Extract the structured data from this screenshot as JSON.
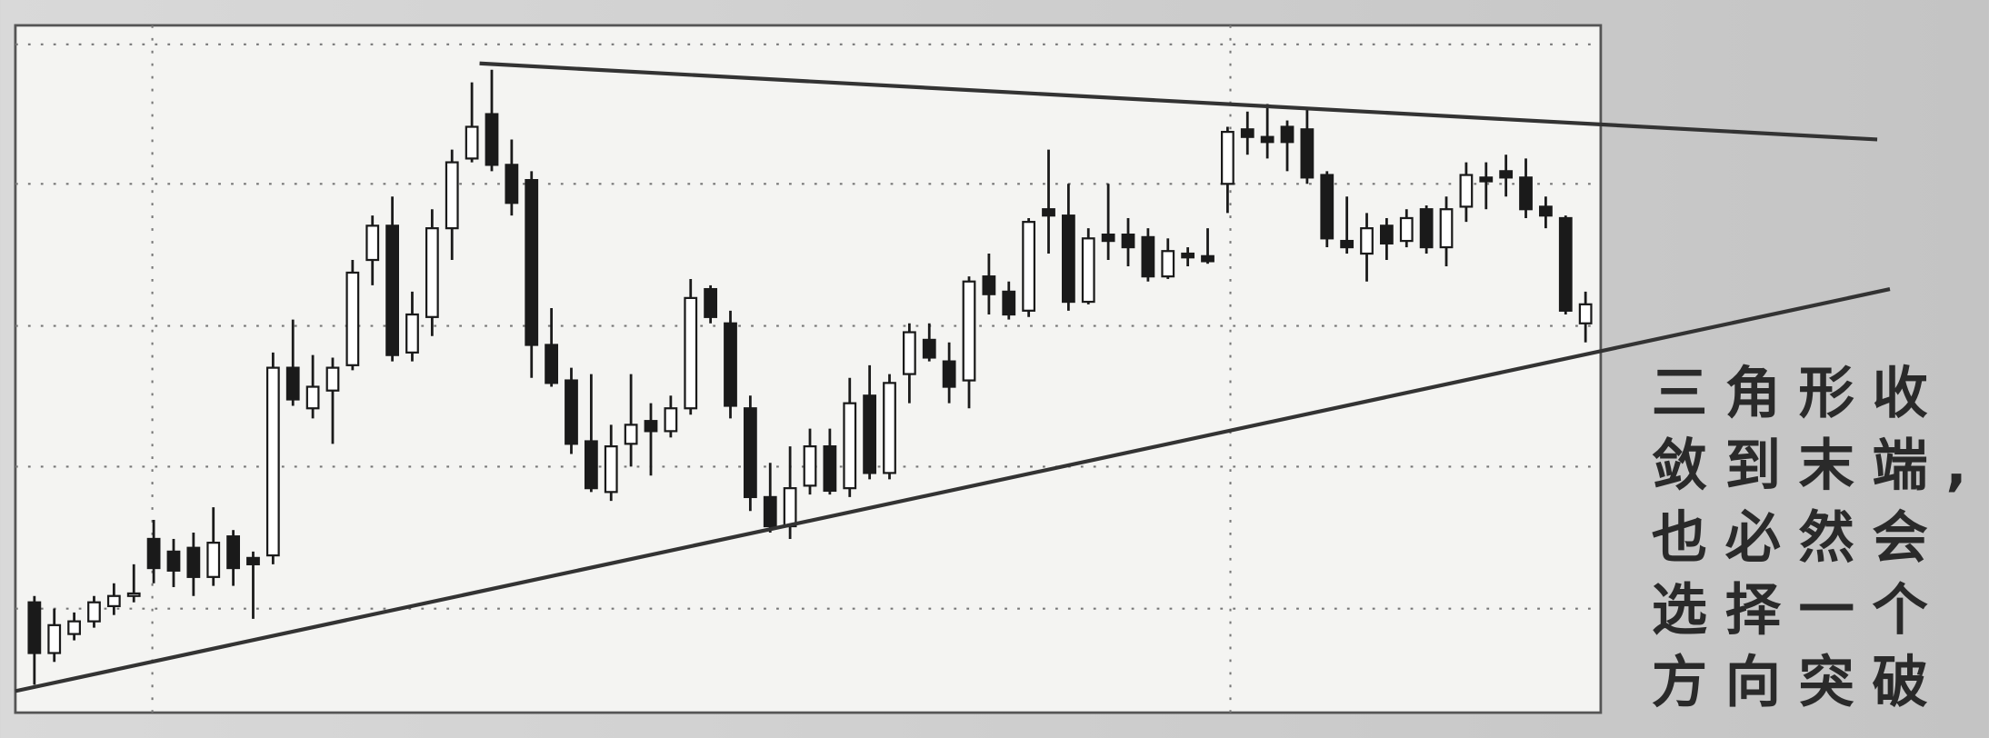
{
  "chart_data": {
    "type": "candlestick",
    "ylim": [
      0,
      542
    ],
    "yticks": [
      82,
      194,
      305,
      417,
      527
    ],
    "grid": true,
    "up_color": "#ffffff",
    "down_color": "#1a1a1a",
    "series": [
      {
        "open": [
          87,
          47,
          62,
          72,
          84,
          92,
          137,
          127,
          130,
          107,
          139,
          122,
          124,
          272,
          240,
          254,
          274,
          357,
          384,
          284,
          312,
          382,
          437,
          472,
          432,
          420,
          290,
          262,
          214,
          174,
          212,
          230,
          222,
          240,
          334,
          307,
          240,
          170,
          147,
          179,
          210,
          177,
          250,
          189,
          267,
          294,
          277,
          262,
          344,
          332,
          317,
          397,
          392,
          324,
          377,
          377,
          375,
          344,
          362,
          360,
          417,
          460,
          454,
          462,
          460,
          424,
          372,
          362,
          384,
          372,
          397,
          367,
          399,
          422,
          427,
          422,
          399,
          390,
          307
        ],
        "high": [
          92,
          82,
          79,
          92,
          102,
          117,
          152,
          137,
          142,
          162,
          144,
          127,
          284,
          310,
          282,
          280,
          357,
          392,
          407,
          332,
          397,
          444,
          497,
          507,
          452,
          427,
          319,
          272,
          267,
          227,
          267,
          244,
          250,
          342,
          337,
          317,
          250,
          197,
          210,
          224,
          224,
          264,
          274,
          267,
          307,
          307,
          292,
          344,
          362,
          340,
          390,
          444,
          417,
          382,
          417,
          390,
          382,
          374,
          367,
          382,
          462,
          474,
          480,
          467,
          477,
          427,
          407,
          394,
          390,
          397,
          400,
          407,
          434,
          434,
          440,
          437,
          407,
          392,
          332
        ],
        "low": [
          22,
          40,
          57,
          67,
          77,
          87,
          102,
          99,
          92,
          100,
          100,
          74,
          117,
          242,
          232,
          212,
          270,
          337,
          277,
          277,
          297,
          357,
          434,
          427,
          392,
          264,
          257,
          204,
          174,
          167,
          194,
          187,
          217,
          235,
          307,
          232,
          159,
          142,
          137,
          172,
          172,
          170,
          184,
          184,
          244,
          277,
          244,
          240,
          314,
          310,
          312,
          362,
          317,
          322,
          357,
          352,
          340,
          342,
          352,
          354,
          394,
          440,
          437,
          427,
          417,
          367,
          362,
          340,
          357,
          367,
          362,
          352,
          387,
          397,
          407,
          390,
          382,
          314,
          292
        ],
        "close": [
          47,
          69,
          72,
          87,
          92,
          94,
          114,
          112,
          107,
          134,
          114,
          117,
          272,
          247,
          257,
          272,
          347,
          384,
          282,
          314,
          382,
          434,
          462,
          432,
          402,
          290,
          260,
          212,
          177,
          210,
          227,
          222,
          240,
          327,
          312,
          242,
          170,
          147,
          177,
          210,
          175,
          244,
          189,
          260,
          300,
          280,
          257,
          340,
          330,
          314,
          387,
          392,
          324,
          374,
          372,
          367,
          344,
          364,
          359,
          356,
          458,
          454,
          450,
          450,
          422,
          374,
          367,
          382,
          370,
          390,
          367,
          397,
          424,
          419,
          422,
          397,
          392,
          317,
          322
        ]
      }
    ],
    "annotation": [
      "三角形收",
      "敛到末端,",
      "也必然会",
      "选择一个",
      "方向突破"
    ]
  }
}
